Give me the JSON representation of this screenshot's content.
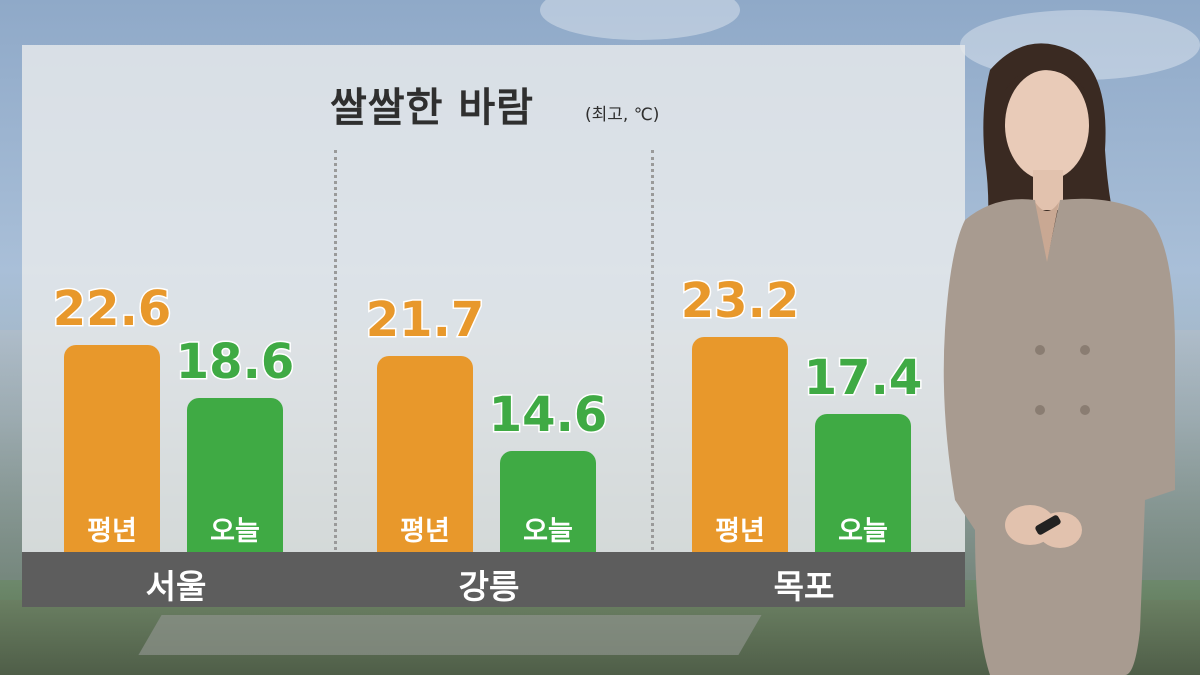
{
  "title": "쌀쌀한 바람",
  "unit_note": "(최고, ℃)",
  "colors": {
    "normal": "#e8982b",
    "today": "#3faa44",
    "city_bar": "#5d5d5d"
  },
  "chart_data": {
    "type": "bar",
    "title": "쌀쌀한 바람",
    "subtitle": "(최고, ℃)",
    "categories": [
      "서울",
      "강릉",
      "목포"
    ],
    "series": [
      {
        "name": "평년",
        "values": [
          22.6,
          21.7,
          23.2
        ]
      },
      {
        "name": "오늘",
        "values": [
          18.6,
          14.6,
          17.4
        ]
      }
    ],
    "value_labels": {
      "평년": [
        "22.6",
        "21.7",
        "23.2"
      ],
      "오늘": [
        "18.6",
        "14.6",
        "17.4"
      ]
    },
    "ylim": [
      0,
      30
    ],
    "grid": false,
    "legend": "none"
  }
}
